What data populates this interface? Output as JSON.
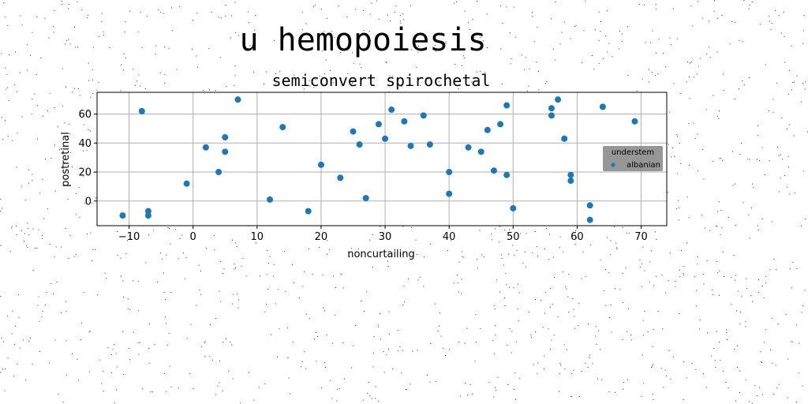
{
  "chart_data": {
    "type": "scatter",
    "suptitle": "u hemopoiesis",
    "title": "semiconvert spirochetal",
    "xlabel": "noncurtailing",
    "ylabel": "postretinal",
    "xlim": [
      -15,
      74
    ],
    "ylim": [
      -17,
      75
    ],
    "xticks": [
      -10,
      0,
      10,
      20,
      30,
      40,
      50,
      60,
      70
    ],
    "yticks": [
      0,
      20,
      40,
      60
    ],
    "xtick_labels": [
      "−10",
      "0",
      "10",
      "20",
      "30",
      "40",
      "50",
      "60",
      "70"
    ],
    "ytick_labels": [
      "0",
      "20",
      "40",
      "60"
    ],
    "grid": true,
    "legend": {
      "title": "understem",
      "placement": "right",
      "entries": [
        "albanian"
      ]
    },
    "colors": {
      "series": "#1f77b4",
      "grid": "#b0b0b0",
      "legend_bg": "#8c8c8c"
    },
    "series": [
      {
        "name": "albanian",
        "points": [
          [
            -11,
            -10
          ],
          [
            -8,
            62
          ],
          [
            -7,
            -7
          ],
          [
            -7,
            -10
          ],
          [
            -1,
            12
          ],
          [
            2,
            37
          ],
          [
            4,
            20
          ],
          [
            5,
            44
          ],
          [
            5,
            34
          ],
          [
            7,
            70
          ],
          [
            12,
            1
          ],
          [
            14,
            51
          ],
          [
            18,
            -7
          ],
          [
            20,
            25
          ],
          [
            23,
            16
          ],
          [
            25,
            48
          ],
          [
            26,
            39
          ],
          [
            27,
            2
          ],
          [
            29,
            53
          ],
          [
            30,
            43
          ],
          [
            31,
            63
          ],
          [
            33,
            55
          ],
          [
            34,
            38
          ],
          [
            36,
            59
          ],
          [
            37,
            39
          ],
          [
            40,
            20
          ],
          [
            40,
            5
          ],
          [
            43,
            37
          ],
          [
            45,
            34
          ],
          [
            46,
            49
          ],
          [
            47,
            21
          ],
          [
            48,
            53
          ],
          [
            49,
            66
          ],
          [
            49,
            18
          ],
          [
            50,
            -5
          ],
          [
            56,
            64
          ],
          [
            56,
            59
          ],
          [
            57,
            70
          ],
          [
            58,
            43
          ],
          [
            59,
            18
          ],
          [
            59,
            14
          ],
          [
            62,
            -3
          ],
          [
            62,
            -13
          ],
          [
            64,
            65
          ],
          [
            69,
            55
          ]
        ]
      }
    ]
  }
}
